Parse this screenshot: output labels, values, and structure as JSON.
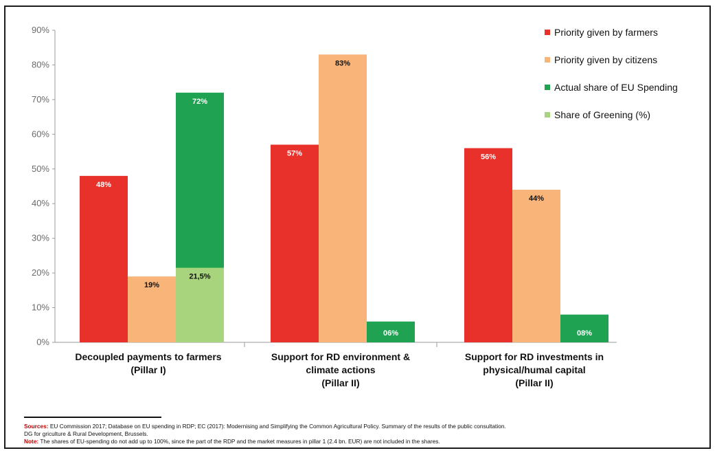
{
  "chart_data": {
    "type": "bar",
    "ylim": [
      0,
      90
    ],
    "yticks": [
      "0%",
      "10%",
      "20%",
      "30%",
      "40%",
      "50%",
      "60%",
      "70%",
      "80%",
      "90%"
    ],
    "yticks_values": [
      0,
      10,
      20,
      30,
      40,
      50,
      60,
      70,
      80,
      90
    ],
    "grid": false,
    "legend_position": "top-right",
    "categories": [
      [
        "Decoupled payments to farmers",
        "(Pillar I)"
      ],
      [
        "Support for RD environment &",
        "climate actions",
        "(Pillar II)"
      ],
      [
        "Support for RD investments in",
        "physical/humal capital",
        "(Pillar II)"
      ]
    ],
    "series": [
      {
        "name": "Priority given by farmers",
        "color": "#e8312a",
        "values": [
          48,
          57,
          56
        ],
        "labels": [
          "48%",
          "57%",
          "56%"
        ]
      },
      {
        "name": "Priority given by citizens",
        "color": "#f9b47a",
        "values": [
          19,
          83,
          44
        ],
        "labels": [
          "19%",
          "83%",
          "44%"
        ]
      },
      {
        "name": "Actual share of EU Spending",
        "color": "#1fa352",
        "values": [
          72,
          6,
          8
        ],
        "labels": [
          "72%",
          "06%",
          "08%"
        ]
      },
      {
        "name": "Share of Greening (%)",
        "color": "#a9d47e",
        "values": [
          21.5,
          null,
          null
        ],
        "labels": [
          "21,5%",
          "",
          ""
        ]
      }
    ]
  },
  "footer": {
    "sources_label": "Sources:",
    "sources_text": "EU Commission 2017; Database on EU spending in RDP; EC (2017): Modernising and Simplifying the Common Agricultural Policy. Summary of the results of the public consultation.",
    "sources_text_2": "DG for griculture & Rural Development, Brussels.",
    "note_label": "Note:",
    "note_text": "The shares of EU-spending do not add up to 100%, since the part of the RDP and the market measures in pillar 1 (2.4 bn. EUR) are not included in the shares."
  }
}
